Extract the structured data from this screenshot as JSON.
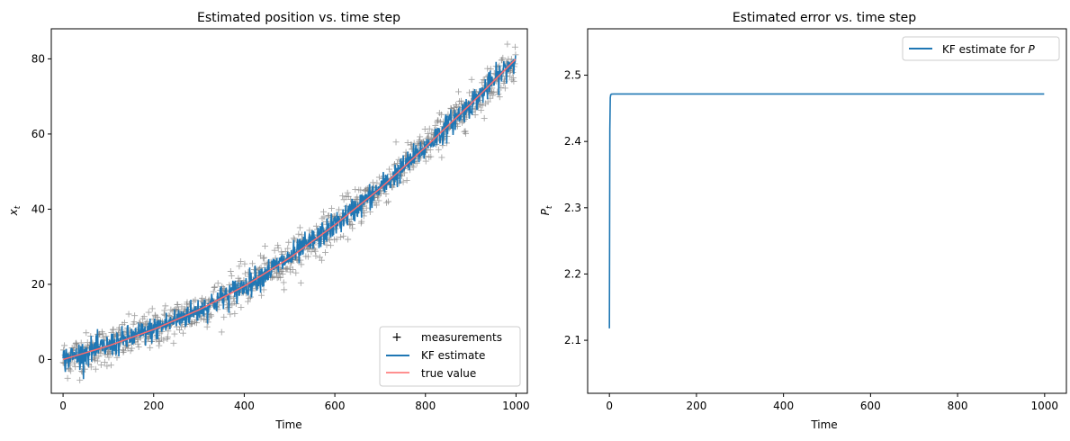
{
  "chart_data": [
    {
      "type": "scatter+line",
      "title": "Estimated position vs. time step",
      "xlabel": "Time",
      "ylabel_base": "x",
      "ylabel_sub": "t",
      "xlim": [
        -26,
        1025
      ],
      "ylim": [
        -9,
        88
      ],
      "xticks": [
        0,
        200,
        400,
        600,
        800,
        1000
      ],
      "yticks": [
        0,
        20,
        40,
        60,
        80
      ],
      "legend_position": "lower right",
      "series": [
        {
          "name": "measurements",
          "kind": "scatter",
          "marker": "+",
          "color": "#808080",
          "model": "true_value + noise(sd≈2.5)"
        },
        {
          "name": "KF estimate",
          "kind": "line",
          "color": "#1f77b4",
          "model": "true_value + noise(sd≈1.6)"
        },
        {
          "name": "true value",
          "kind": "line",
          "color": "#ff6b6b",
          "x": [
            0,
            100,
            200,
            300,
            400,
            500,
            600,
            700,
            800,
            900,
            1000
          ],
          "y": [
            0,
            3.6,
            8.0,
            13.2,
            19.5,
            27.0,
            35.8,
            45.5,
            56.5,
            68.0,
            80.0
          ]
        }
      ],
      "n_points": 1000
    },
    {
      "type": "line",
      "title": "Estimated error vs. time step",
      "xlabel": "Time",
      "ylabel_base": "P",
      "ylabel_sub": "t",
      "xlim": [
        -50,
        1050
      ],
      "ylim": [
        2.02,
        2.57
      ],
      "xticks": [
        0,
        200,
        400,
        600,
        800,
        1000
      ],
      "yticks": [
        2.1,
        2.2,
        2.3,
        2.4,
        2.5
      ],
      "legend_position": "upper right",
      "series": [
        {
          "name_prefix": "KF estimate for ",
          "name_math": "P",
          "color": "#1f77b4",
          "x": [
            0,
            1,
            2,
            3,
            5,
            10,
            50,
            200,
            500,
            999
          ],
          "y": [
            2.118,
            2.418,
            2.466,
            2.4705,
            2.4715,
            2.4716,
            2.4716,
            2.4716,
            2.4716,
            2.4716
          ]
        }
      ]
    }
  ]
}
